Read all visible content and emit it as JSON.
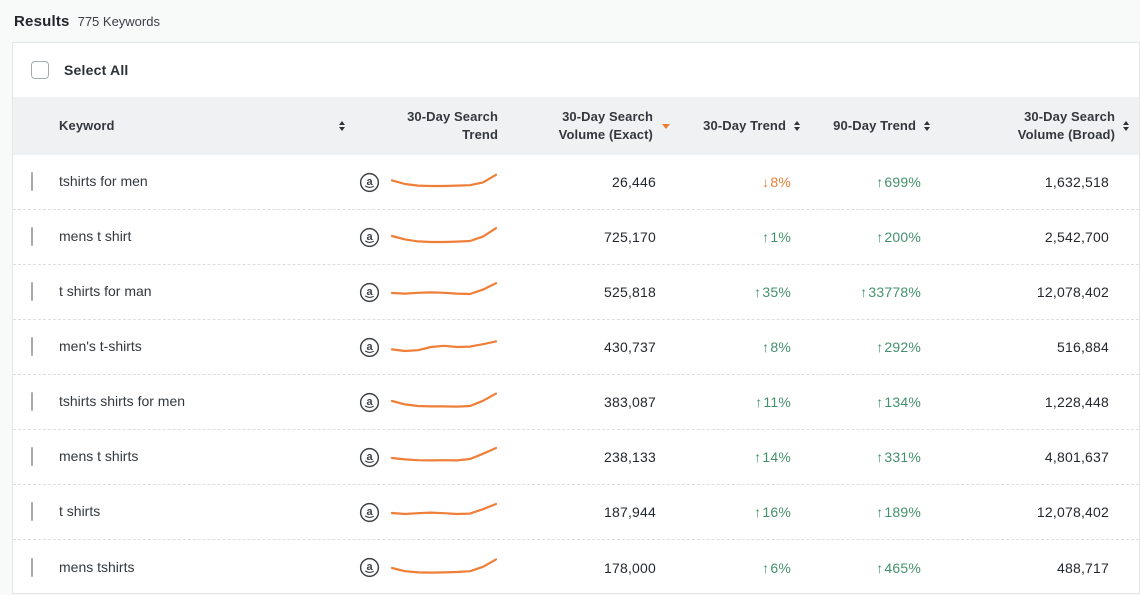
{
  "header": {
    "title": "Results",
    "count": "775 Keywords",
    "select_all": "Select All"
  },
  "colors": {
    "trend_up_green": "#43916A",
    "trend_down_orange": "#ED7C33",
    "sparkline_orange": "#EF7E38",
    "sort_active_orange": "#ED7C33",
    "header_bg": "#f0f1f2"
  },
  "table": {
    "columns": [
      {
        "label": "Keyword",
        "sortable": true
      },
      {
        "label": "30-Day Search Trend",
        "sortable": false
      },
      {
        "label": "30-Day Search Volume (Exact)",
        "sortable": true,
        "sorted": "desc"
      },
      {
        "label": "30-Day Trend",
        "sortable": true
      },
      {
        "label": "90-Day Trend",
        "sortable": true
      },
      {
        "label": "30-Day Search Volume (Broad)",
        "sortable": true
      }
    ],
    "marketplace_icon": "amazon-icon",
    "rows": [
      {
        "keyword": "tshirts for men",
        "vol_exact": "26,446",
        "trend_30": {
          "dir": "down",
          "value": "8%"
        },
        "trend_90": {
          "dir": "up",
          "value": "699%"
        },
        "vol_broad": "1,632,518",
        "sparkline": [
          0.42,
          0.6,
          0.68,
          0.7,
          0.7,
          0.68,
          0.66,
          0.52,
          0.14
        ]
      },
      {
        "keyword": "mens t shirt",
        "vol_exact": "725,170",
        "trend_30": {
          "dir": "up",
          "value": "1%"
        },
        "trend_90": {
          "dir": "up",
          "value": "200%"
        },
        "vol_broad": "2,542,700",
        "sparkline": [
          0.45,
          0.62,
          0.72,
          0.75,
          0.75,
          0.73,
          0.7,
          0.48,
          0.06
        ]
      },
      {
        "keyword": "t shirts for man",
        "vol_exact": "525,818",
        "trend_30": {
          "dir": "up",
          "value": "35%"
        },
        "trend_90": {
          "dir": "up",
          "value": "33778%"
        },
        "vol_broad": "12,078,402",
        "sparkline": [
          0.55,
          0.58,
          0.54,
          0.52,
          0.54,
          0.58,
          0.6,
          0.38,
          0.06
        ]
      },
      {
        "keyword": "men's t-shirts",
        "vol_exact": "430,737",
        "trend_30": {
          "dir": "up",
          "value": "8%"
        },
        "trend_90": {
          "dir": "up",
          "value": "292%"
        },
        "vol_broad": "516,884",
        "sparkline": [
          0.62,
          0.7,
          0.66,
          0.5,
          0.44,
          0.5,
          0.48,
          0.36,
          0.22
        ]
      },
      {
        "keyword": "tshirts shirts for men",
        "vol_exact": "383,087",
        "trend_30": {
          "dir": "up",
          "value": "11%"
        },
        "trend_90": {
          "dir": "up",
          "value": "134%"
        },
        "vol_broad": "1,228,448",
        "sparkline": [
          0.45,
          0.62,
          0.7,
          0.72,
          0.72,
          0.73,
          0.7,
          0.44,
          0.08
        ]
      },
      {
        "keyword": "mens t shirts",
        "vol_exact": "238,133",
        "trend_30": {
          "dir": "up",
          "value": "14%"
        },
        "trend_90": {
          "dir": "up",
          "value": "331%"
        },
        "vol_broad": "4,801,637",
        "sparkline": [
          0.55,
          0.62,
          0.66,
          0.67,
          0.66,
          0.67,
          0.6,
          0.34,
          0.05
        ]
      },
      {
        "keyword": "t shirts",
        "vol_exact": "187,944",
        "trend_30": {
          "dir": "up",
          "value": "16%"
        },
        "trend_90": {
          "dir": "up",
          "value": "189%"
        },
        "vol_broad": "12,078,402",
        "sparkline": [
          0.55,
          0.6,
          0.56,
          0.53,
          0.56,
          0.6,
          0.58,
          0.36,
          0.1
        ]
      },
      {
        "keyword": "mens tshirts",
        "vol_exact": "178,000",
        "trend_30": {
          "dir": "up",
          "value": "6%"
        },
        "trend_90": {
          "dir": "up",
          "value": "465%"
        },
        "vol_broad": "488,717",
        "sparkline": [
          0.5,
          0.66,
          0.72,
          0.73,
          0.72,
          0.7,
          0.66,
          0.44,
          0.07
        ]
      }
    ]
  }
}
